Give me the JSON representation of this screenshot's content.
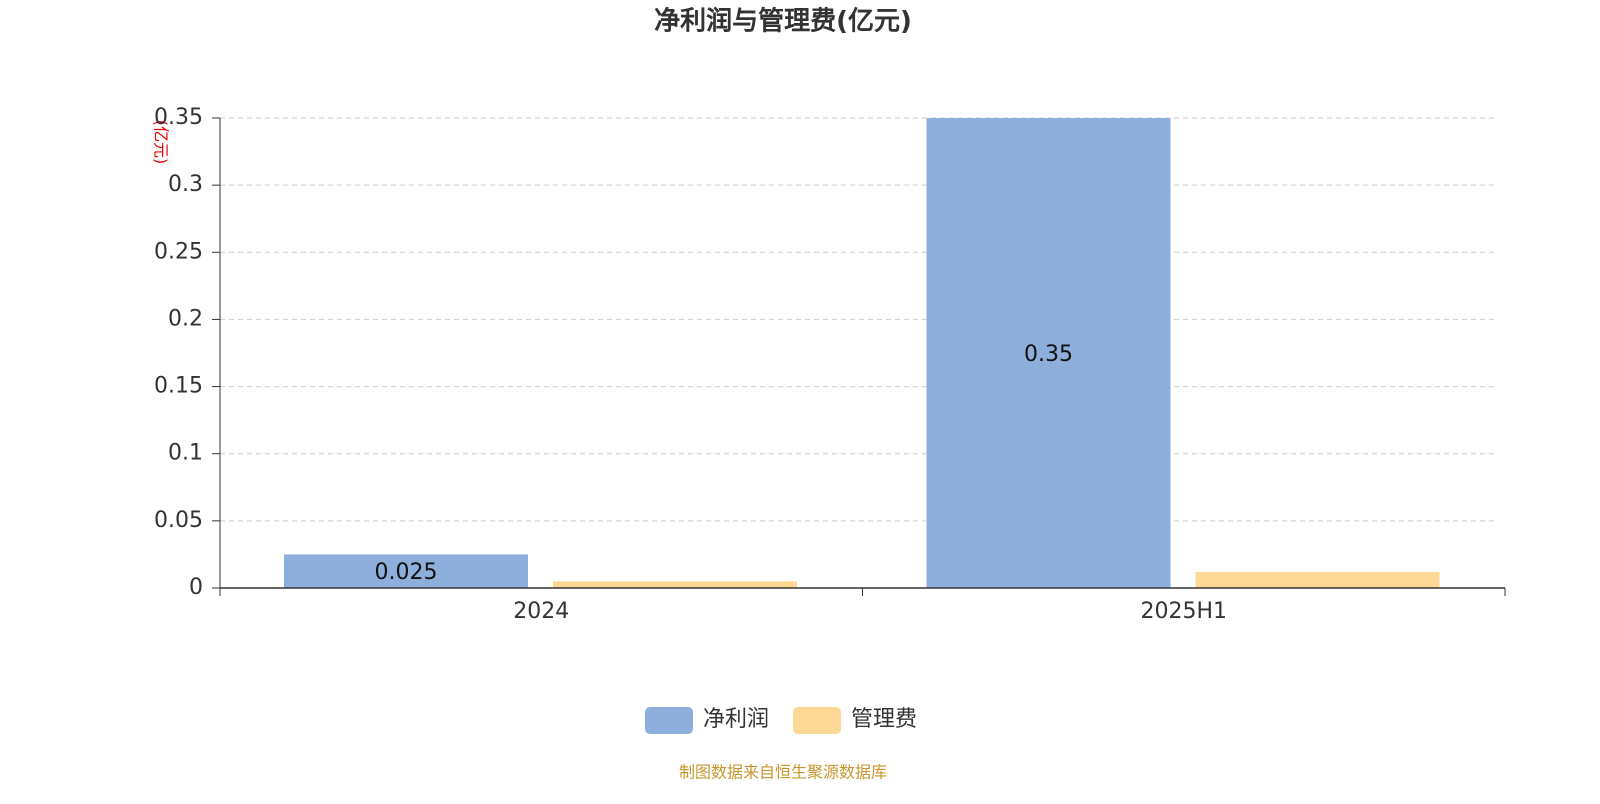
{
  "chart_data": {
    "type": "bar",
    "title": "净利润与管理费(亿元)",
    "y_label": "(亿元)",
    "source": "制图数据来自恒生聚源数据库",
    "categories": [
      "2024",
      "2025H1"
    ],
    "series": [
      {
        "name": "净利润",
        "color": "#8eaedb",
        "values": [
          0.025,
          0.35
        ],
        "show_labels": true
      },
      {
        "name": "管理费",
        "color": "#fdd995",
        "values": [
          0.005,
          0.012
        ],
        "show_labels": false
      }
    ],
    "ylim": [
      0,
      0.35
    ],
    "yticks": [
      0,
      0.05,
      0.1,
      0.15,
      0.2,
      0.25,
      0.3,
      0.35
    ],
    "grid": true
  }
}
